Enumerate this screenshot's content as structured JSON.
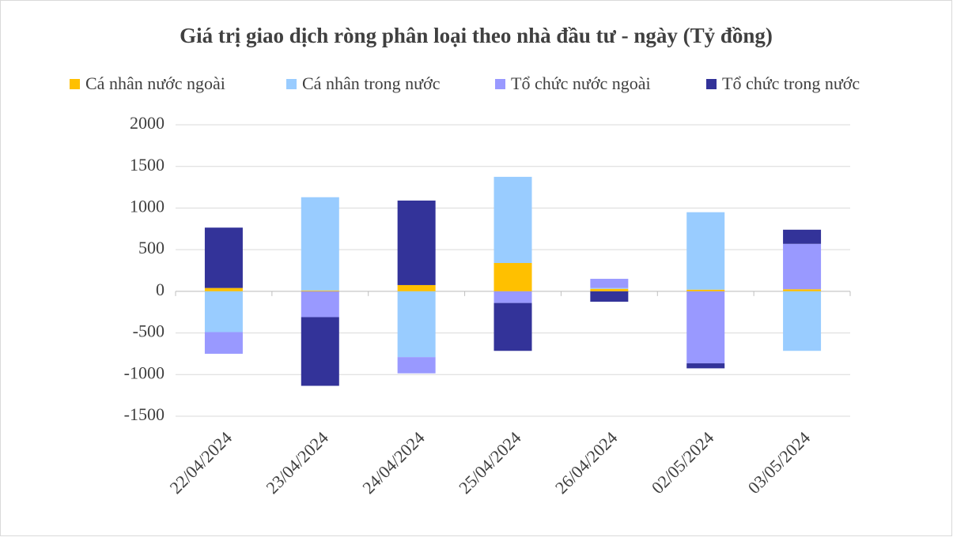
{
  "chart_data": {
    "type": "stacked_bar",
    "title": "Giá trị giao dịch ròng phân loại theo nhà đầu tư - ngày (Tỷ đồng)",
    "categories": [
      "22/04/2024",
      "23/04/2024",
      "24/04/2024",
      "25/04/2024",
      "26/04/2024",
      "02/05/2024",
      "03/05/2024"
    ],
    "series": [
      {
        "name": "Cá nhân nước ngoài",
        "color": "#ffc000",
        "values": [
          40,
          10,
          75,
          340,
          30,
          20,
          25
        ]
      },
      {
        "name": "Cá nhân trong nước",
        "color": "#99ccff",
        "values": [
          -490,
          1120,
          -790,
          1035,
          10,
          930,
          -715
        ]
      },
      {
        "name": "Tổ chức nước ngoài",
        "color": "#9999ff",
        "values": [
          -260,
          -310,
          -195,
          -140,
          110,
          -865,
          545
        ]
      },
      {
        "name": "Tổ chức trong nước",
        "color": "#333399",
        "values": [
          725,
          -825,
          1015,
          -575,
          -125,
          -60,
          170
        ]
      }
    ],
    "ylim": [
      -1500,
      2000
    ],
    "yticks": [
      -1500,
      -1000,
      -500,
      0,
      500,
      1000,
      1500,
      2000
    ],
    "grid": true,
    "legend": "top"
  }
}
